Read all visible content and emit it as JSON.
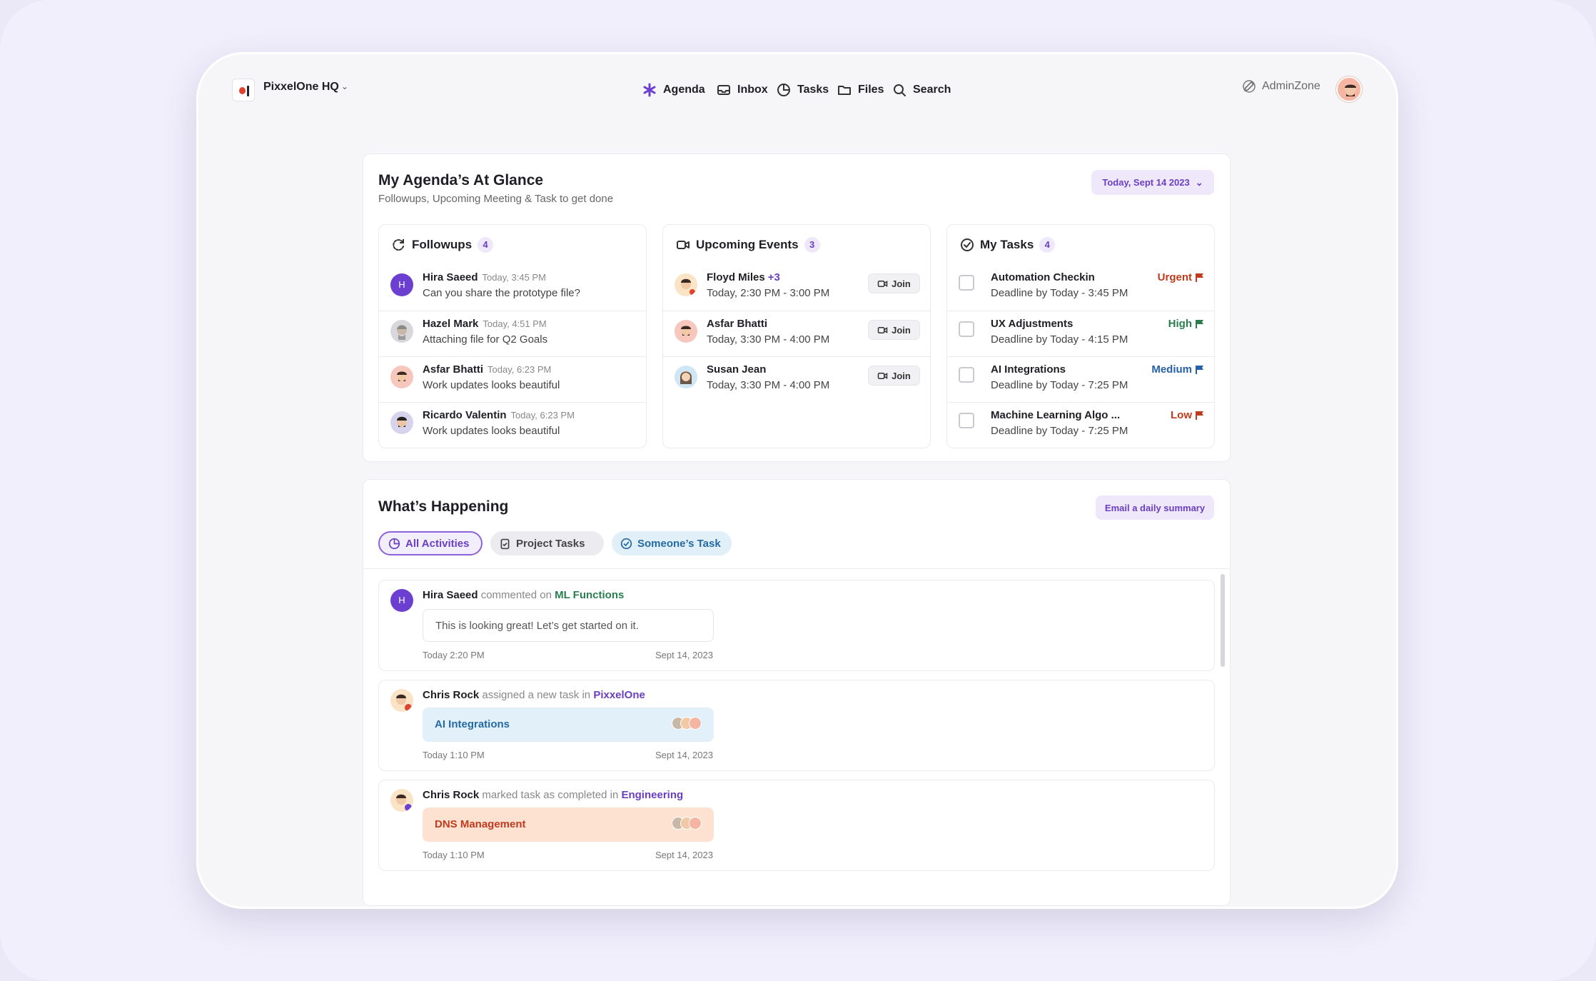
{
  "app": {
    "workspace": "PixxelOne HQ",
    "nav": [
      "Agenda",
      "Inbox",
      "Tasks",
      "Files",
      "Search"
    ],
    "admin_label": "AdminZone"
  },
  "agenda": {
    "title": "My Agenda’s At Glance",
    "subtitle": "Followups, Upcoming Meeting & Task to get done",
    "date_filter": "Today, Sept 14 2023",
    "followups": {
      "title": "Followups",
      "count": "4",
      "items": [
        {
          "name": "Hira Saeed",
          "time": "Today, 3:45 PM",
          "text": "Can you share the prototype file?",
          "avatar": "H"
        },
        {
          "name": "Hazel Mark",
          "time": "Today, 4:51 PM",
          "text": "Attaching file for Q2 Goals"
        },
        {
          "name": "Asfar Bhatti",
          "time": "Today, 6:23 PM",
          "text": "Work updates looks beautiful"
        },
        {
          "name": "Ricardo Valentin",
          "time": "Today, 6:23 PM",
          "text": "Work updates looks beautiful"
        }
      ]
    },
    "events": {
      "title": "Upcoming Events",
      "count": "3",
      "join_label": "Join",
      "items": [
        {
          "name": "Floyd Miles",
          "extra": "+3",
          "time": "Today, 2:30 PM - 3:00 PM"
        },
        {
          "name": "Asfar Bhatti",
          "extra": "",
          "time": "Today, 3:30 PM - 4:00 PM"
        },
        {
          "name": "Susan Jean",
          "extra": "",
          "time": "Today, 3:30 PM - 4:00 PM"
        }
      ]
    },
    "tasks": {
      "title": "My Tasks",
      "count": "4",
      "items": [
        {
          "name": "Automation Checkin",
          "deadline": "Deadline by Today - 3:45 PM",
          "priority": "Urgent",
          "color": "#c23a1e"
        },
        {
          "name": "UX Adjustments",
          "deadline": "Deadline by Today - 4:15 PM",
          "priority": "High",
          "color": "#2a7d4f"
        },
        {
          "name": "AI Integrations",
          "deadline": "Deadline by Today - 7:25 PM",
          "priority": "Medium",
          "color": "#2560a8"
        },
        {
          "name": "Machine Learning Algo ...",
          "deadline": "Deadline by Today - 7:25 PM",
          "priority": "Low",
          "color": "#c23a1e"
        }
      ]
    }
  },
  "happening": {
    "title": "What’s Happening",
    "email_button": "Email a daily summary",
    "filters": [
      "All Activities",
      "Project Tasks",
      "Someone’s Task"
    ],
    "feed": [
      {
        "name": "Hira Saeed",
        "action": "commented on",
        "target": "ML Functions",
        "target_color": "#2a7d4f",
        "comment": "This is looking great! Let’s get started on it.",
        "time": "Today 2:20 PM",
        "date": "Sept 14, 2023",
        "avatar": "H"
      },
      {
        "name": "Chris Rock",
        "action": "assigned a new task in",
        "target": "PixxelOne",
        "target_color": "#6a3fc0",
        "task": "AI Integrations",
        "time": "Today 1:10 PM",
        "date": "Sept 14, 2023"
      },
      {
        "name": "Chris Rock",
        "action": "marked task as completed in",
        "target": "Engineering",
        "target_color": "#6a3fc0",
        "task": "DNS Management",
        "time": "Today 1:10 PM",
        "date": "Sept 14, 2023"
      }
    ]
  }
}
